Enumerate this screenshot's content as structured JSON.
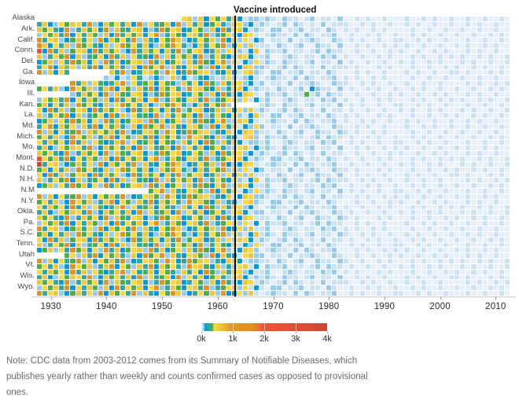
{
  "chart_data": {
    "type": "heatmap",
    "annotation": "Vaccine introduced",
    "vaccine_year": 1963,
    "x_start_year": 1928,
    "x_end_year": 2012,
    "x_ticks": [
      "1930",
      "1940",
      "1950",
      "1960",
      "1970",
      "1980",
      "1990",
      "2000",
      "2010"
    ],
    "grid_on": false,
    "legend": {
      "position": "bottom-center",
      "labels": [
        "0k",
        "1k",
        "2k",
        "3k",
        "4k"
      ],
      "min": 0,
      "max": 4000,
      "stops": [
        [
          0,
          "#e7f0fa"
        ],
        [
          0.01,
          "#c9e2f6"
        ],
        [
          0.02,
          "#95cbee"
        ],
        [
          0.03,
          "#0099dc"
        ],
        [
          0.06,
          "#31a8a2"
        ],
        [
          0.09,
          "#4ab04a"
        ],
        [
          0.1,
          "#ffd73e"
        ],
        [
          0.15,
          "#eec73a"
        ],
        [
          0.25,
          "#e29421"
        ],
        [
          0.4,
          "#e29421"
        ],
        [
          0.5,
          "#f05336"
        ],
        [
          1.0,
          "#ce472e"
        ]
      ]
    },
    "palette": {
      ".": "none",
      "0": "#e7f0fa",
      "1": "#c9e2f6",
      "2": "#95cbee",
      "3": "#0099dc",
      "4": "#31a8a2",
      "5": "#4ab04a",
      "6": "#8cbb4e",
      "7": "#ffd73e",
      "8": "#eec73a",
      "9": "#e29421",
      "a": "#f05336",
      "b": "#ce472e"
    },
    "bucket_case_values": {
      ".": null,
      "0": 20,
      "1": 60,
      "2": 100,
      "3": 240,
      "4": 330,
      "5": 380,
      "6": 450,
      "7": 500,
      "8": 800,
      "9": 1300,
      "a": 2000,
      "b": 3600
    },
    "rows": [
      {
        "label": "Alaska",
        "cells": "..........................78283757483122121021101201102001010010001001010010010010010"
      },
      {
        "label": "",
        "cells": "4832758749238574839274583927483574287231210120210102011100101001001010010010010100100"
      },
      {
        "label": "Ark.",
        "cells": "8574392485739285478324957834752839478312102201120110210101001010000100100100100100100"
      },
      {
        "label": "",
        "cells": "2758493748528394758379248537849245723871012110202101120010010100100101001001001001010"
      },
      {
        "label": "Calif.",
        "cells": "9478235847293857492843759823475829382713201102011210021010100100110010100100010010010"
      },
      {
        "label": "",
        "cells": "9837482957438279574832859742384759237281110210120021102001010010101001001001010010100"
      },
      {
        "label": "Conn.",
        "cells": "a394825783948572394857384925783482772138021120110120211001001001010010010100010100100"
      },
      {
        "label": "",
        "cells": "8247593824573948274539284758392475328731120012101102120100100101000101001010100101001"
      },
      {
        "label": "Del.",
        "cells": "3582749583729483578294835728495379281327121021101201102010010010010100101000101001001"
      },
      {
        "label": "",
        "cells": "4793867284937584283957928437852938413872210120210102011101000101000100100101001010010"
      },
      {
        "label": "Ga.",
        "cells": "928374.......849234785297349587243831782102201120110210001010010001010010011010001010"
      },
      {
        "label": "",
        "cells": "............2131274123218231243212721231012110202101120101001010000100100100100100100"
      },
      {
        "label": "Iowa",
        "cells": "......9482753489274583754284739528487231201102011210021100101001001001001000010100101"
      },
      {
        "label": "",
        "cells": "5748239758248937528493857429785382478312110210120321102010010100100101001001001001010"
      },
      {
        "label": "Ill.",
        "cells": "......2485739285478324957834752839423871021120115120211001001001010010010100010100100"
      },
      {
        "label": "",
        "cells": "2758493748528394758379248537849245782713120012101102120100100101000101001010100101001"
      },
      {
        "label": "Kan.",
        "cells": "58374829574382795748328597423847592.....121021101201102010100100110010100100010010010"
      },
      {
        "label": "",
        "cells": "7394825783948572394857384925783482737281210120210102011010010010010100101000101001001"
      },
      {
        "label": "La.",
        "cells": "8247593824573948274539284758392475372138102201120110210101000101000100100101001010010"
      },
      {
        "label": "",
        "cells": "3582749583729483578294835728495379228731012110202101120100101001001010010010010100100"
      },
      {
        "label": "Md.",
        "cells": "4793857284937584283957928437852938481327201102011210021001010010001001010010010010010"
      },
      {
        "label": "",
        "cells": "9283745928675849234785297349587243813872110210120021102101001010000100100100100100100"
      },
      {
        "label": "Mich.",
        "cells": "5748239758248937528493857429785382431782021120110120211010010100100101001001001001010"
      },
      {
        "label": "",
        "cells": "7485739482753489274583754284739528483122120012101102120010100100110010100100010010010"
      },
      {
        "label": "Mo.",
        "cells": "4832758749238574839274583927483574227813121021101201102001010010101001001001010010100"
      },
      {
        "label": "",
        "cells": "8574392485739285478324957834752839487231210120210102011001001001010010010100010100100"
      },
      {
        "label": "Mont.",
        "cells": "a758493748528394758379248537849245778312102201120110210100100101000101001010100101001"
      },
      {
        "label": "",
        "cells": "b478235847293857492843759823475829323871012110202101120010010010010100101000101001001"
      },
      {
        "label": "N.D.",
        "cells": "5837482957438279574832859742384759282713201102011210021101000101000100100101001010010"
      },
      {
        "label": "",
        "cells": "7394825783948572394857384925783482737281110210120021102001010010001010010011010001010"
      },
      {
        "label": "N.H.",
        "cells": "8247593824573948274539284758392475372138021120110120211100101001001001001000010100101"
      },
      {
        "label": "",
        "cells": "3582749583729483578294835728495379228731120012101102120010010100100101001001001001010"
      },
      {
        "label": "N.M",
        "cells": "....................57928437852938481327121021101201102010100100110010100100010010010"
      },
      {
        "label": "",
        "cells": "9283745928375849234785297349587243813872210120210102011001010010101001001001010010100"
      },
      {
        "label": "N.Y.",
        "cells": "5748239758248937528493857429785382431782102201120110210001001001010010010100010100100"
      },
      {
        "label": "",
        "cells": "7485739482753489274583754284739528487231012110202101120100100101000101001010100101001"
      },
      {
        "label": "Okla.",
        "cells": "4832758749238574839274583927483574278312201102011210021010010010010100101000101001001"
      },
      {
        "label": "",
        "cells": "8574392485739285478324957834752839423871110210120021102101000101000100100101001010010"
      },
      {
        "label": "Pa.",
        "cells": "2758493748528394758379248537849245782713021120110120211001010010001001010010010010010"
      },
      {
        "label": "",
        "cells": "9478235847293857492843759823475829337281120012101102120101001010000100100100100100100"
      },
      {
        "label": "S.C.",
        "cells": "5837482957438279574832859742384759272138121021101201102100101001001010010010010100100"
      },
      {
        "label": "",
        "cells": "7394825783948572394857384925783482728731210120210102011010010100100101001001001001010"
      },
      {
        "label": "Tenn.",
        "cells": "8247593824573948274539284758392475381327102201120110210010100100110010100100010010010"
      },
      {
        "label": "",
        "cells": "3582749583729483578294835728495379213872012110202101120001010010101001001001010010100"
      },
      {
        "label": "Utah",
        "cells": ".....57284937584283957928437852938431782201102011210021001001001010010010100010100100"
      },
      {
        "label": "",
        "cells": "9283745928375849234785297349587243883122110210120021102100100101000101001010100101001"
      },
      {
        "label": "Vt.",
        "cells": "5748239758248937528493857429785382427813021120110120211010010010010100101000101001001"
      },
      {
        "label": "",
        "cells": "7485739482753489274583754284739528487231120012101102120101000101000100100101001010010"
      },
      {
        "label": "Wis.",
        "cells": "4832758749238574839274583927483574278312121021101201102001010010001010010011010001010"
      },
      {
        "label": "",
        "cells": "8574392485739285478324957834752839423871210120210102011100101001001001001000010100101"
      },
      {
        "label": "Wyo.",
        "cells": "2758493748528394758379248537849245782713102201120110210010010100100101001001001001010"
      },
      {
        "label": "",
        "cells": "9478235847293857492843759823475829337281012110202101120010100100110010100100010010010"
      }
    ]
  },
  "note": {
    "lines": [
      "Note: CDC data from 2003-2012 comes from its Summary of Notifiable Diseases, which",
      "publishes yearly rather than weekly and counts confirmed cases as opposed to provisional",
      "ones."
    ]
  }
}
